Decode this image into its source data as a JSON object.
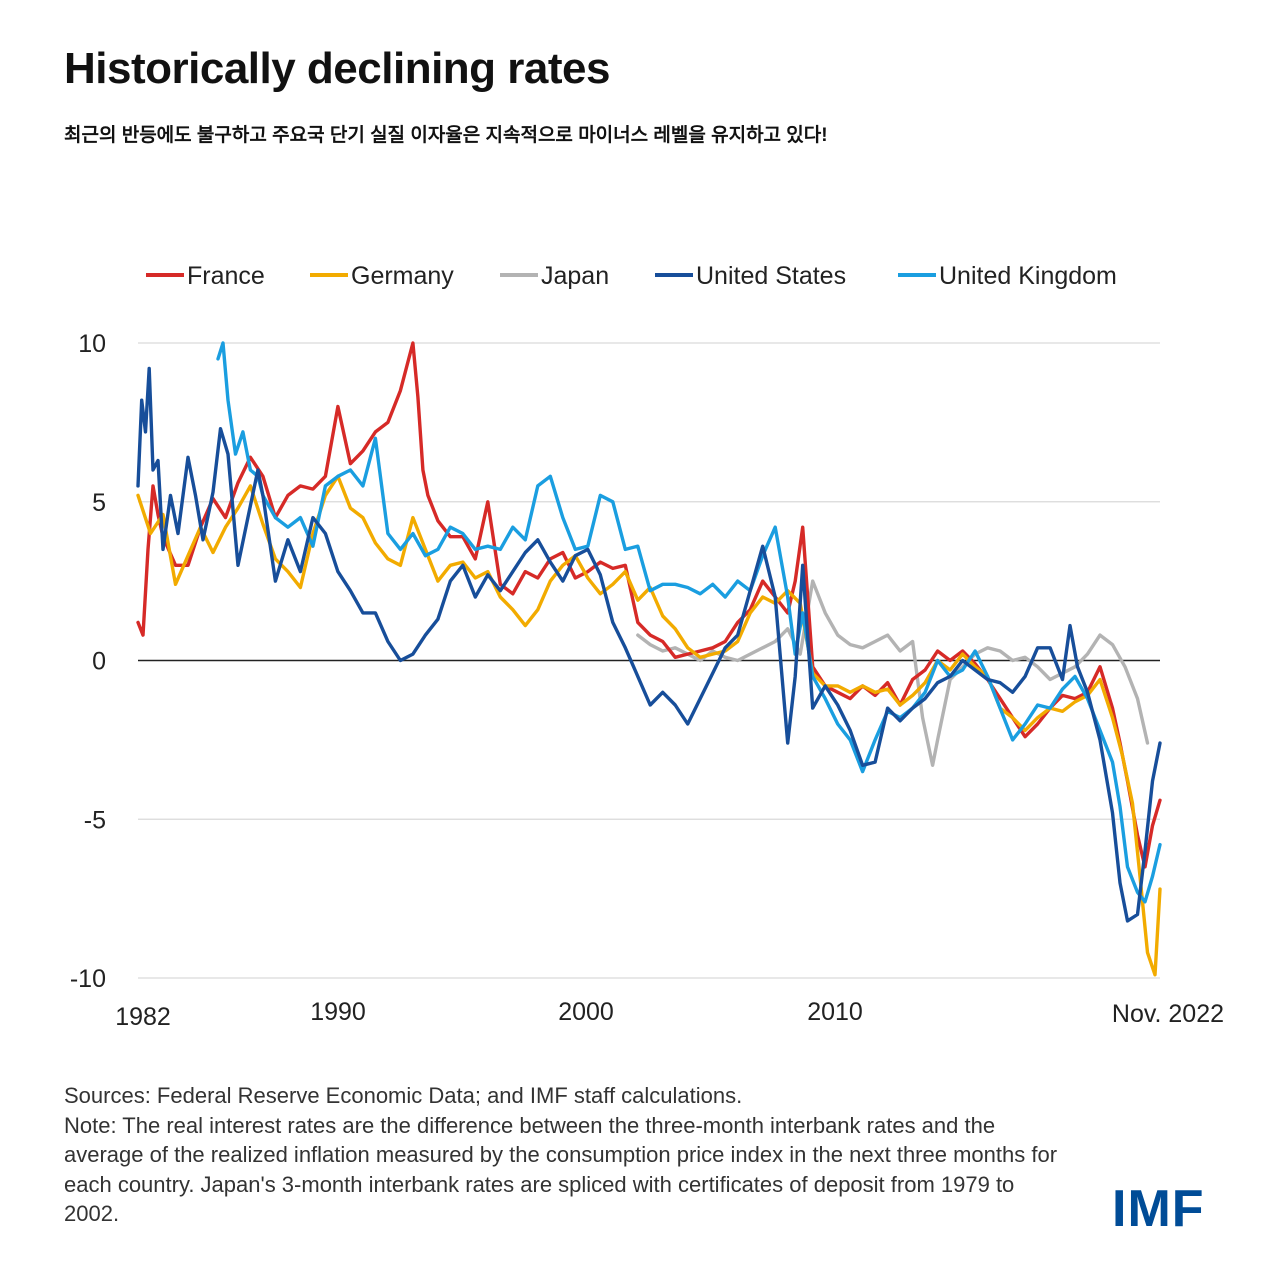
{
  "title": "Historically declining rates",
  "subtitle": "최근의 반등에도 불구하고 주요국 단기 실질 이자율은 지속적으로 마이너스 레벨을 유지하고 있다!",
  "notes": {
    "sources": "Sources: Federal Reserve Economic Data; and IMF staff calculations.",
    "note": "Note: The real interest rates are the difference between the three-month interbank rates and the average of the realized inflation measured by the consumption price index in the next three months for each country. Japan's 3-month interbank rates are spliced with certificates of deposit from 1979 to 2002."
  },
  "logo": "IMF",
  "chart_data": {
    "type": "line",
    "title": "Historically declining rates",
    "xlabel": "",
    "ylabel": "",
    "ylim": [
      -10,
      10
    ],
    "xlim": [
      1982,
      2022.9
    ],
    "yticks": [
      10,
      5,
      0,
      -5,
      -10
    ],
    "xticks": [
      {
        "label": "1982",
        "value": 1982
      },
      {
        "label": "1990",
        "value": 1990
      },
      {
        "label": "2000",
        "value": 2000
      },
      {
        "label": "2010",
        "value": 2010
      },
      {
        "label": "Nov. 2022",
        "value": 2022.9
      }
    ],
    "grid": true,
    "legend_position": "top",
    "series": [
      {
        "name": "France",
        "color": "#d62a27",
        "x": [
          1982,
          1982.2,
          1982.4,
          1982.6,
          1982.8,
          1983,
          1983.5,
          1984,
          1984.5,
          1985,
          1985.5,
          1986,
          1986.5,
          1987,
          1987.5,
          1988,
          1988.5,
          1989,
          1989.5,
          1990,
          1990.5,
          1991,
          1991.5,
          1992,
          1992.5,
          1993,
          1993.2,
          1993.4,
          1993.6,
          1994,
          1994.5,
          1995,
          1995.5,
          1996,
          1996.5,
          1997,
          1997.5,
          1998,
          1998.5,
          1999,
          1999.5,
          2000,
          2000.5,
          2001,
          2001.5,
          2002,
          2002.5,
          2003,
          2003.5,
          2004,
          2004.5,
          2005,
          2005.5,
          2006,
          2006.5,
          2007,
          2007.5,
          2008,
          2008.3,
          2008.6,
          2009,
          2009.5,
          2010,
          2010.5,
          2011,
          2011.5,
          2012,
          2012.5,
          2013,
          2013.5,
          2014,
          2014.5,
          2015,
          2015.5,
          2016,
          2016.5,
          2017,
          2017.5,
          2018,
          2018.5,
          2019,
          2019.5,
          2020,
          2020.5,
          2021,
          2021.3,
          2021.6,
          2022,
          2022.3,
          2022.6,
          2022.9
        ],
        "y": [
          1.2,
          0.8,
          3.5,
          5.5,
          4.6,
          3.9,
          3.0,
          3.0,
          4.2,
          5.1,
          4.5,
          5.6,
          6.4,
          5.8,
          4.5,
          5.2,
          5.5,
          5.4,
          5.8,
          8.0,
          6.2,
          6.6,
          7.2,
          7.5,
          8.5,
          10.0,
          8.3,
          6.0,
          5.2,
          4.4,
          3.9,
          3.9,
          3.2,
          5.0,
          2.4,
          2.1,
          2.8,
          2.6,
          3.2,
          3.4,
          2.6,
          2.8,
          3.1,
          2.9,
          3.0,
          1.2,
          0.8,
          0.6,
          0.1,
          0.2,
          0.3,
          0.4,
          0.6,
          1.2,
          1.6,
          2.5,
          2.0,
          1.5,
          2.5,
          4.2,
          -0.2,
          -0.8,
          -1.0,
          -1.2,
          -0.8,
          -1.1,
          -0.7,
          -1.4,
          -0.6,
          -0.3,
          0.3,
          0.0,
          0.3,
          -0.1,
          -0.6,
          -1.2,
          -1.8,
          -2.4,
          -2.0,
          -1.5,
          -1.1,
          -1.2,
          -1.0,
          -0.2,
          -1.5,
          -2.6,
          -3.8,
          -5.5,
          -6.5,
          -5.2,
          -4.4
        ]
      },
      {
        "name": "Germany",
        "color": "#f2ab00",
        "x": [
          1982,
          1982.5,
          1983,
          1983.5,
          1984,
          1984.5,
          1985,
          1985.5,
          1986,
          1986.5,
          1987,
          1987.5,
          1988,
          1988.5,
          1989,
          1989.5,
          1990,
          1990.5,
          1991,
          1991.5,
          1992,
          1992.5,
          1993,
          1993.5,
          1994,
          1994.5,
          1995,
          1995.5,
          1996,
          1996.5,
          1997,
          1997.5,
          1998,
          1998.5,
          1999,
          1999.5,
          2000,
          2000.5,
          2001,
          2001.5,
          2002,
          2002.5,
          2003,
          2003.5,
          2004,
          2004.5,
          2005,
          2005.5,
          2006,
          2006.5,
          2007,
          2007.5,
          2008,
          2008.5,
          2009,
          2009.5,
          2010,
          2010.5,
          2011,
          2011.5,
          2012,
          2012.5,
          2013,
          2013.5,
          2014,
          2014.5,
          2015,
          2015.5,
          2016,
          2016.5,
          2017,
          2017.5,
          2018,
          2018.5,
          2019,
          2019.5,
          2020,
          2020.5,
          2021,
          2021.4,
          2021.8,
          2022.1,
          2022.4,
          2022.7,
          2022.9
        ],
        "y": [
          5.2,
          4.0,
          4.6,
          2.4,
          3.3,
          4.2,
          3.4,
          4.2,
          4.8,
          5.5,
          4.3,
          3.2,
          2.8,
          2.3,
          4.0,
          5.2,
          5.8,
          4.8,
          4.5,
          3.7,
          3.2,
          3.0,
          4.5,
          3.5,
          2.5,
          3.0,
          3.1,
          2.6,
          2.8,
          2.0,
          1.6,
          1.1,
          1.6,
          2.5,
          3.0,
          3.3,
          2.6,
          2.1,
          2.4,
          2.8,
          1.9,
          2.3,
          1.4,
          1.0,
          0.4,
          0.1,
          0.2,
          0.3,
          0.6,
          1.5,
          2.0,
          1.8,
          2.2,
          1.8,
          -0.4,
          -0.8,
          -0.8,
          -1.0,
          -0.8,
          -1.0,
          -0.9,
          -1.4,
          -1.1,
          -0.7,
          0.0,
          -0.3,
          0.2,
          -0.2,
          -0.5,
          -1.5,
          -1.8,
          -2.2,
          -1.8,
          -1.5,
          -1.6,
          -1.3,
          -1.1,
          -0.6,
          -1.8,
          -3.0,
          -4.5,
          -6.8,
          -9.2,
          -9.9,
          -7.2
        ]
      },
      {
        "name": "Japan",
        "color": "#b3b3b3",
        "x": [
          2002,
          2002.5,
          2003,
          2003.5,
          2004,
          2004.5,
          2005,
          2005.5,
          2006,
          2006.5,
          2007,
          2007.5,
          2008,
          2008.5,
          2009,
          2009.5,
          2010,
          2010.5,
          2011,
          2011.5,
          2012,
          2012.5,
          2013,
          2013.4,
          2013.8,
          2014,
          2014.5,
          2015,
          2015.5,
          2016,
          2016.5,
          2017,
          2017.5,
          2018,
          2018.5,
          2019,
          2019.5,
          2020,
          2020.5,
          2021,
          2021.5,
          2022,
          2022.4
        ],
        "y": [
          0.8,
          0.5,
          0.3,
          0.4,
          0.2,
          0.0,
          0.3,
          0.1,
          0.0,
          0.2,
          0.4,
          0.6,
          1.0,
          0.2,
          2.5,
          1.5,
          0.8,
          0.5,
          0.4,
          0.6,
          0.8,
          0.3,
          0.6,
          -1.8,
          -3.3,
          -2.5,
          -0.6,
          -0.2,
          0.2,
          0.4,
          0.3,
          0.0,
          0.1,
          -0.2,
          -0.6,
          -0.4,
          -0.2,
          0.2,
          0.8,
          0.5,
          -0.2,
          -1.2,
          -2.6
        ]
      },
      {
        "name": "United States",
        "color": "#174e9a",
        "x": [
          1982,
          1982.15,
          1982.3,
          1982.45,
          1982.6,
          1982.8,
          1983,
          1983.3,
          1983.6,
          1984,
          1984.3,
          1984.6,
          1985,
          1985.3,
          1985.6,
          1986,
          1986.4,
          1986.8,
          1987,
          1987.5,
          1988,
          1988.5,
          1989,
          1989.5,
          1990,
          1990.5,
          1991,
          1991.5,
          1992,
          1992.5,
          1993,
          1993.5,
          1994,
          1994.5,
          1995,
          1995.5,
          1996,
          1996.5,
          1997,
          1997.5,
          1998,
          1998.5,
          1999,
          1999.5,
          2000,
          2000.5,
          2001,
          2001.5,
          2002,
          2002.5,
          2003,
          2003.5,
          2004,
          2004.5,
          2005,
          2005.5,
          2006,
          2006.5,
          2007,
          2007.5,
          2008,
          2008.3,
          2008.6,
          2009,
          2009.5,
          2010,
          2010.5,
          2011,
          2011.5,
          2012,
          2012.5,
          2013,
          2013.5,
          2014,
          2014.5,
          2015,
          2015.5,
          2016,
          2016.5,
          2017,
          2017.5,
          2018,
          2018.5,
          2019,
          2019.3,
          2019.6,
          2020,
          2020.5,
          2021,
          2021.3,
          2021.6,
          2022,
          2022.3,
          2022.6,
          2022.9
        ],
        "y": [
          5.5,
          8.2,
          7.2,
          9.2,
          6.0,
          6.3,
          3.5,
          5.2,
          4.0,
          6.4,
          5.2,
          3.8,
          5.3,
          7.3,
          6.5,
          3.0,
          4.5,
          6.0,
          5.2,
          2.5,
          3.8,
          2.8,
          4.5,
          4.0,
          2.8,
          2.2,
          1.5,
          1.5,
          0.6,
          0.0,
          0.2,
          0.8,
          1.3,
          2.5,
          3.0,
          2.0,
          2.7,
          2.2,
          2.8,
          3.4,
          3.8,
          3.1,
          2.5,
          3.3,
          3.5,
          2.7,
          1.2,
          0.4,
          -0.5,
          -1.4,
          -1.0,
          -1.4,
          -2.0,
          -1.2,
          -0.4,
          0.4,
          0.8,
          2.2,
          3.6,
          2.0,
          -2.6,
          -0.5,
          3.0,
          -1.5,
          -0.8,
          -1.4,
          -2.2,
          -3.3,
          -3.2,
          -1.5,
          -1.9,
          -1.5,
          -1.2,
          -0.7,
          -0.5,
          0.0,
          -0.3,
          -0.6,
          -0.7,
          -1.0,
          -0.5,
          0.4,
          0.4,
          -0.6,
          1.1,
          -0.2,
          -1.0,
          -2.5,
          -4.8,
          -7.0,
          -8.2,
          -8.0,
          -6.0,
          -3.8,
          -2.6
        ]
      },
      {
        "name": "United Kingdom",
        "color": "#1a9ee0",
        "x": [
          1985.2,
          1985.4,
          1985.6,
          1985.9,
          1986.2,
          1986.5,
          1986.8,
          1987,
          1987.5,
          1988,
          1988.5,
          1989,
          1989.5,
          1990,
          1990.5,
          1991,
          1991.5,
          1992,
          1992.5,
          1993,
          1993.5,
          1994,
          1994.5,
          1995,
          1995.5,
          1996,
          1996.5,
          1997,
          1997.5,
          1998,
          1998.5,
          1999,
          1999.5,
          2000,
          2000.5,
          2001,
          2001.5,
          2002,
          2002.5,
          2003,
          2003.5,
          2004,
          2004.5,
          2005,
          2005.5,
          2006,
          2006.5,
          2007,
          2007.5,
          2008,
          2008.3,
          2008.6,
          2009,
          2009.5,
          2010,
          2010.5,
          2011,
          2011.5,
          2012,
          2012.5,
          2013,
          2013.5,
          2014,
          2014.5,
          2015,
          2015.5,
          2016,
          2016.5,
          2017,
          2017.5,
          2018,
          2018.5,
          2019,
          2019.5,
          2020,
          2020.5,
          2021,
          2021.3,
          2021.6,
          2022,
          2022.3,
          2022.6,
          2022.9
        ],
        "y": [
          9.5,
          10.0,
          8.2,
          6.5,
          7.2,
          6.0,
          5.8,
          5.2,
          4.5,
          4.2,
          4.5,
          3.6,
          5.5,
          5.8,
          6.0,
          5.5,
          7.0,
          4.0,
          3.5,
          4.0,
          3.3,
          3.5,
          4.2,
          4.0,
          3.5,
          3.6,
          3.5,
          4.2,
          3.8,
          5.5,
          5.8,
          4.5,
          3.5,
          3.6,
          5.2,
          5.0,
          3.5,
          3.6,
          2.2,
          2.4,
          2.4,
          2.3,
          2.1,
          2.4,
          2.0,
          2.5,
          2.2,
          3.3,
          4.2,
          2.0,
          0.2,
          1.5,
          -0.5,
          -1.2,
          -2.0,
          -2.5,
          -3.5,
          -2.5,
          -1.6,
          -1.8,
          -1.5,
          -1.0,
          0.0,
          -0.5,
          -0.3,
          0.3,
          -0.5,
          -1.5,
          -2.5,
          -2.0,
          -1.4,
          -1.5,
          -0.9,
          -0.5,
          -1.2,
          -2.2,
          -3.2,
          -4.6,
          -6.5,
          -7.3,
          -7.6,
          -6.8,
          -5.8
        ]
      }
    ]
  }
}
